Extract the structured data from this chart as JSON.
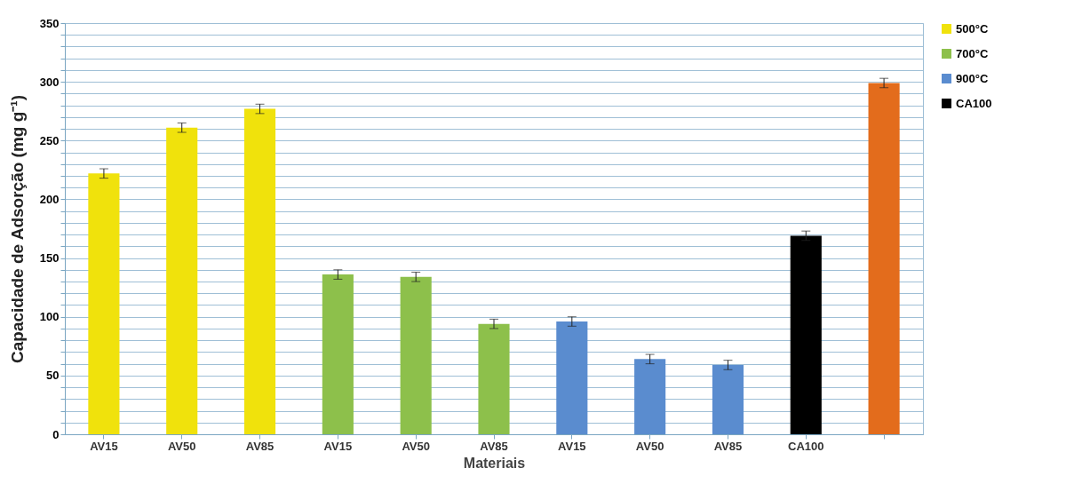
{
  "chart_data": {
    "type": "bar",
    "xlabel": "Materiais",
    "ylabel": "Capacidade de Adsorção (mg g⁻¹)",
    "categories": [
      "AV15",
      "AV50",
      "AV85",
      "AV15",
      "AV50",
      "AV85",
      "AV15",
      "AV50",
      "AV85",
      "CA100",
      null
    ],
    "series": [
      {
        "name": "500°C",
        "color": "#f0e20c",
        "values": [
          222,
          261,
          277,
          null,
          null,
          null,
          null,
          null,
          null,
          null,
          null
        ],
        "errors": [
          4,
          4,
          4,
          null,
          null,
          null,
          null,
          null,
          null,
          null,
          null
        ]
      },
      {
        "name": "700°C",
        "color": "#8dc04b",
        "values": [
          null,
          null,
          null,
          136,
          134,
          94,
          null,
          null,
          null,
          null,
          null
        ],
        "errors": [
          null,
          null,
          null,
          4,
          4,
          4,
          null,
          null,
          null,
          null,
          null
        ]
      },
      {
        "name": "900°C",
        "color": "#5a8ccf",
        "values": [
          null,
          null,
          null,
          null,
          null,
          null,
          96,
          64,
          59,
          null,
          null
        ],
        "errors": [
          null,
          null,
          null,
          null,
          null,
          null,
          4,
          4,
          4,
          null,
          null
        ]
      },
      {
        "name": "CA100",
        "color": "#000000",
        "values": [
          null,
          null,
          null,
          null,
          null,
          null,
          null,
          null,
          null,
          169,
          null
        ],
        "errors": [
          null,
          null,
          null,
          null,
          null,
          null,
          null,
          null,
          null,
          4,
          null
        ]
      },
      {
        "color": "#e36c1c",
        "values": [
          null,
          null,
          null,
          null,
          null,
          null,
          null,
          null,
          null,
          null,
          299
        ],
        "errors": [
          null,
          null,
          null,
          null,
          null,
          null,
          null,
          null,
          null,
          null,
          4
        ]
      }
    ],
    "ylim": [
      0,
      350
    ],
    "yticks": [
      0,
      {
        "value": 10,
        "label": null
      },
      {
        "value": 20,
        "label": null
      },
      {
        "value": 30,
        "label": null
      },
      {
        "value": 40,
        "label": null
      },
      50,
      {
        "value": 60,
        "label": null
      },
      {
        "value": 70,
        "label": null
      },
      {
        "value": 80,
        "label": null
      },
      {
        "value": 90,
        "label": null
      },
      100,
      {
        "value": 110,
        "label": null
      },
      {
        "value": 120,
        "label": null
      },
      {
        "value": 130,
        "label": null
      },
      {
        "value": 140,
        "label": null
      },
      150,
      {
        "value": 160,
        "label": null
      },
      {
        "value": 170,
        "label": null
      },
      {
        "value": 180,
        "label": null
      },
      {
        "value": 190,
        "label": null
      },
      200,
      {
        "value": 210,
        "label": null
      },
      {
        "value": 220,
        "label": null
      },
      {
        "value": 230,
        "label": null
      },
      {
        "value": 240,
        "label": null
      },
      250,
      {
        "value": 260,
        "label": null
      },
      {
        "value": 270,
        "label": null
      },
      {
        "value": 280,
        "label": null
      },
      {
        "value": 290,
        "label": null
      },
      300,
      {
        "value": 310,
        "label": null
      },
      {
        "value": 320,
        "label": null
      },
      {
        "value": 330,
        "label": null
      },
      {
        "value": 340,
        "label": null
      },
      350
    ],
    "grid": "y",
    "legend": "right"
  }
}
